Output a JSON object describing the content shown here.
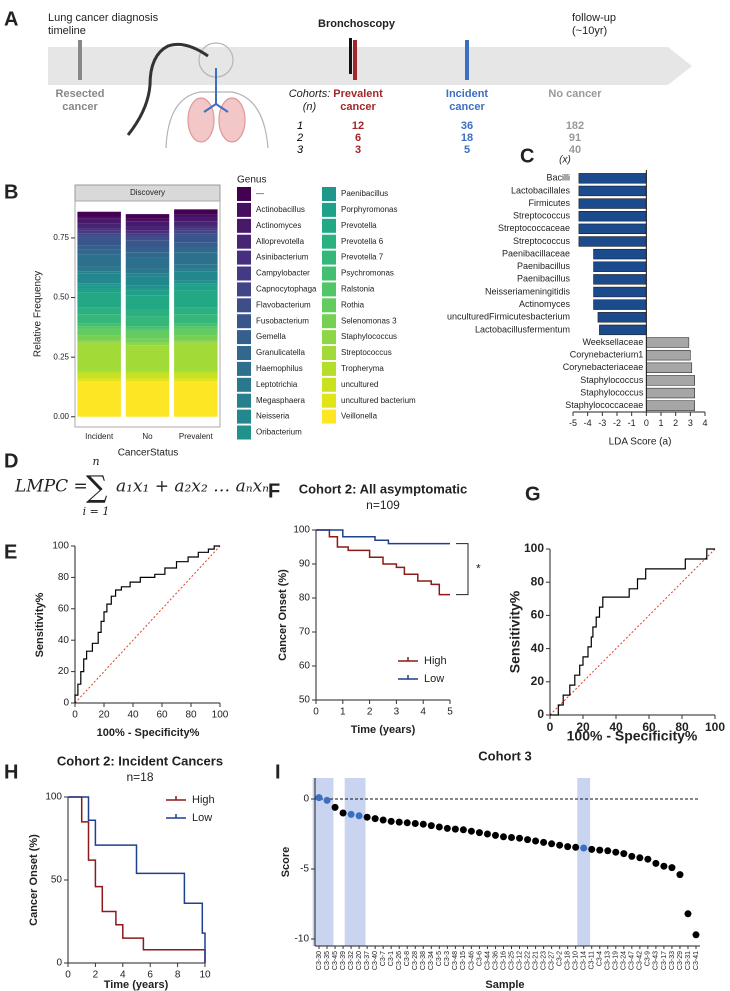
{
  "panels": [
    "A",
    "B",
    "C",
    "D",
    "E",
    "F",
    "G",
    "H",
    "I"
  ],
  "timeline": {
    "title": "Lung cancer diagnosis timeline",
    "event": "Bronchoscopy",
    "followup": "follow-up (~10yr)",
    "resected": "Resected cancer",
    "cohorts_header": "Cohorts: (n)",
    "groups": [
      "Prevalent cancer",
      "Incident cancer",
      "No cancer"
    ],
    "rows": [
      {
        "cohort": 1,
        "counts": [
          12,
          36,
          182
        ]
      },
      {
        "cohort": 2,
        "counts": [
          6,
          18,
          91
        ]
      },
      {
        "cohort": 3,
        "counts": [
          3,
          5,
          40
        ]
      }
    ]
  },
  "equation": {
    "lhs": "LMPC =",
    "symbol": "∑",
    "upper": "n",
    "lower": "i = 1",
    "rhs": "a₁x₁ + a₂x₂ … aₙxₙ"
  },
  "chart_data": [
    {
      "type": "stacked_bar",
      "strip": "Discovery",
      "ylabel": "Relative Frequency",
      "xlabel": "CancerStatus",
      "legend_title": "Genus",
      "categories": [
        "Incident",
        "No",
        "Prevalent"
      ],
      "ylim": [
        -0.043,
        0.905
      ],
      "yticks": [
        {
          "value": 0,
          "label": "0.00"
        },
        0.25,
        {
          "value": 0.5,
          "label": "0.50"
        },
        0.75
      ],
      "series": [
        {
          "name": "—",
          "color": "#440154",
          "values": [
            0.02,
            0.02,
            0.02
          ]
        },
        {
          "name": "Actinobacillus",
          "color": "#470D60",
          "values": [
            0.01,
            0.01,
            0.01
          ]
        },
        {
          "name": "Actinomyces",
          "color": "#48196B",
          "values": [
            0.02,
            0.02,
            0.02
          ]
        },
        {
          "name": "Alloprevotella",
          "color": "#482475",
          "values": [
            0.02,
            0.02,
            0.02
          ]
        },
        {
          "name": "Asinibacterium",
          "color": "#472F7D",
          "values": [
            0.01,
            0.01,
            0.01
          ]
        },
        {
          "name": "Campylobacter",
          "color": "#443A83",
          "values": [
            0.01,
            0.01,
            0.01
          ]
        },
        {
          "name": "Capnocytophaga",
          "color": "#414487",
          "values": [
            0.01,
            0.01,
            0.01
          ]
        },
        {
          "name": "Flavobacterium",
          "color": "#3D4E8A",
          "values": [
            0.01,
            0.01,
            0.01
          ]
        },
        {
          "name": "Fusobacterium",
          "color": "#39568C",
          "values": [
            0.03,
            0.03,
            0.03
          ]
        },
        {
          "name": "Gemella",
          "color": "#355F8D",
          "values": [
            0.02,
            0.02,
            0.02
          ]
        },
        {
          "name": "Granulicatella",
          "color": "#31688E",
          "values": [
            0.02,
            0.02,
            0.02
          ]
        },
        {
          "name": "Haemophilus",
          "color": "#2D708E",
          "values": [
            0.05,
            0.05,
            0.05
          ]
        },
        {
          "name": "Leptotrichia",
          "color": "#2A788E",
          "values": [
            0.02,
            0.02,
            0.02
          ]
        },
        {
          "name": "Megasphaera",
          "color": "#27808E",
          "values": [
            0.01,
            0.01,
            0.01
          ]
        },
        {
          "name": "Neisseria",
          "color": "#23888E",
          "values": [
            0.04,
            0.04,
            0.04
          ]
        },
        {
          "name": "Oribacterium",
          "color": "#21918C",
          "values": [
            0.01,
            0.01,
            0.01
          ]
        },
        {
          "name": "Paenibacillus",
          "color": "#1F988B",
          "values": [
            0.01,
            0.01,
            0.01
          ]
        },
        {
          "name": "Porphyromonas",
          "color": "#1FA088",
          "values": [
            0.02,
            0.02,
            0.02
          ]
        },
        {
          "name": "Prevotella",
          "color": "#22A884",
          "values": [
            0.06,
            0.06,
            0.07
          ]
        },
        {
          "name": "Prevotella 6",
          "color": "#2BB07F",
          "values": [
            0.03,
            0.03,
            0.03
          ]
        },
        {
          "name": "Prevotella 7",
          "color": "#35B779",
          "values": [
            0.04,
            0.04,
            0.04
          ]
        },
        {
          "name": "Psychromonas",
          "color": "#43BF71",
          "values": [
            0.01,
            0.01,
            0.01
          ]
        },
        {
          "name": "Ralstonia",
          "color": "#52C569",
          "values": [
            0.01,
            0.01,
            0.01
          ]
        },
        {
          "name": "Rothia",
          "color": "#63CB5F",
          "values": [
            0.03,
            0.03,
            0.03
          ]
        },
        {
          "name": "Selenomonas 3",
          "color": "#75D054",
          "values": [
            0.02,
            0.02,
            0.02
          ]
        },
        {
          "name": "Staphylococcus",
          "color": "#8ED645",
          "values": [
            0.01,
            0.01,
            0.01
          ]
        },
        {
          "name": "Streptococcus",
          "color": "#A2DA37",
          "values": [
            0.12,
            0.11,
            0.12
          ]
        },
        {
          "name": "Tropheryma",
          "color": "#B5DE2B",
          "values": [
            0.01,
            0.01,
            0.01
          ]
        },
        {
          "name": "uncultured",
          "color": "#CAE11F",
          "values": [
            0.02,
            0.02,
            0.02
          ]
        },
        {
          "name": "uncultured bacterium",
          "color": "#E1E418",
          "values": [
            0.01,
            0.01,
            0.01
          ]
        },
        {
          "name": "Veillonella",
          "color": "#FDE725",
          "values": [
            0.15,
            0.15,
            0.15
          ]
        }
      ]
    },
    {
      "type": "hbar",
      "category_label": "(x)",
      "xlabel": "LDA Score (a)",
      "categories": [
        "Bacilli",
        "Lactobacillales",
        "Firmicutes",
        "Streptococcus",
        "Streptococcaceae",
        "Streptococcus",
        "Paenibacillaceae",
        "Paenibacillus",
        "Paenibacillus",
        "Neisseriameningitidis",
        "Actinomyces",
        "unculturedFirmicutesbacterium",
        "Lactobacillusfermentum",
        "Weeksellaceae",
        "Corynebacterium1",
        "Corynebacteriaceae",
        "Staphylococcus",
        "Staphylococcus",
        "Staphylococcaceae"
      ],
      "values": [
        -4.6,
        -4.6,
        -4.6,
        -4.6,
        -4.6,
        -4.6,
        -3.6,
        -3.6,
        -3.6,
        -3.6,
        -3.6,
        -3.3,
        -3.2,
        2.9,
        3.0,
        3.1,
        3.3,
        3.3,
        3.3
      ],
      "negative_color": "#1b4b8c",
      "positive_color": "#a6a6a6",
      "xlim": [
        -5,
        4
      ],
      "xticks": [
        -5,
        -4,
        -3,
        -2,
        -1,
        0,
        1,
        2,
        3,
        4
      ]
    },
    {
      "type": "roc",
      "xlabel": "100% - Specificity%",
      "ylabel": "Sensitivity%",
      "color": "#000000",
      "reference_color": "#e0402a",
      "x": [
        0,
        0,
        2,
        2,
        4,
        4,
        6,
        6,
        8,
        8,
        12,
        12,
        16,
        16,
        18,
        18,
        20,
        20,
        22,
        22,
        25,
        25,
        28,
        28,
        32,
        32,
        38,
        38,
        45,
        45,
        55,
        55,
        62,
        62,
        70,
        70,
        78,
        78,
        85,
        85,
        92,
        92,
        96,
        96,
        100
      ],
      "y": [
        0,
        5,
        5,
        12,
        12,
        20,
        20,
        28,
        28,
        33,
        33,
        38,
        38,
        45,
        45,
        52,
        52,
        58,
        58,
        63,
        63,
        68,
        68,
        72,
        72,
        74,
        74,
        77,
        77,
        80,
        80,
        82,
        82,
        86,
        86,
        90,
        90,
        93,
        93,
        96,
        96,
        98,
        98,
        100,
        100
      ],
      "xlim": [
        0,
        100
      ],
      "ylim": [
        0,
        100
      ],
      "xticks": [
        0,
        20,
        40,
        60,
        80,
        100
      ],
      "yticks": [
        0,
        20,
        40,
        60,
        80,
        100
      ]
    },
    {
      "type": "km",
      "title": "Cohort 2: All asymptomatic",
      "subtitle": "n=109",
      "xlabel": "Time (years)",
      "ylabel": "Cancer Onset (%)",
      "annotation": "*",
      "legend": "lower right",
      "series": [
        {
          "name": "High",
          "color": "#8b1a1a",
          "x": [
            0,
            0.5,
            0.5,
            0.8,
            0.8,
            1.2,
            1.2,
            2,
            2,
            2.5,
            2.5,
            3,
            3,
            3.3,
            3.3,
            3.8,
            3.8,
            4.3,
            4.3,
            4.6,
            4.6,
            5
          ],
          "y": [
            100,
            100,
            98,
            98,
            95,
            95,
            94,
            94,
            92,
            92,
            90,
            90,
            89,
            89,
            87,
            87,
            85,
            85,
            84,
            84,
            81,
            81
          ]
        },
        {
          "name": "Low",
          "color": "#1f3f8f",
          "x": [
            0,
            1,
            1,
            2.2,
            2.2,
            2.7,
            2.7,
            5
          ],
          "y": [
            100,
            100,
            98,
            98,
            97,
            97,
            96,
            96
          ]
        }
      ],
      "xlim": [
        0,
        5
      ],
      "ylim": [
        50,
        100
      ],
      "xticks": [
        0,
        1,
        2,
        3,
        4,
        5
      ],
      "yticks": [
        50,
        60,
        70,
        80,
        90,
        100
      ]
    },
    {
      "type": "roc",
      "xlabel": "100% - Specificity%",
      "ylabel": "Sensitivity%",
      "color": "#000000",
      "reference_color": "#e0402a",
      "x": [
        0,
        5,
        5,
        8,
        8,
        12,
        12,
        15,
        15,
        18,
        18,
        20,
        20,
        23,
        23,
        25,
        25,
        26,
        26,
        28,
        28,
        30,
        30,
        32,
        32,
        48,
        48,
        53,
        53,
        58,
        58,
        82,
        82,
        95,
        95,
        100
      ],
      "y": [
        0,
        0,
        6,
        6,
        12,
        12,
        18,
        18,
        24,
        24,
        30,
        30,
        35,
        35,
        41,
        41,
        47,
        47,
        53,
        53,
        59,
        59,
        65,
        65,
        71,
        71,
        76,
        76,
        82,
        82,
        88,
        88,
        94,
        94,
        100,
        100
      ],
      "xlim": [
        0,
        100
      ],
      "ylim": [
        0,
        100
      ],
      "xticks": [
        0,
        20,
        40,
        60,
        80,
        100
      ],
      "yticks": [
        0,
        20,
        40,
        60,
        80,
        100
      ]
    },
    {
      "type": "km",
      "title": "Cohort 2: Incident Cancers",
      "subtitle": "n=18",
      "xlabel": "Time (years)",
      "ylabel": "Cancer Onset (%)",
      "legend": "upper right",
      "series": [
        {
          "name": "High",
          "color": "#8b1a1a",
          "x": [
            0,
            1,
            1,
            1.5,
            1.5,
            2,
            2,
            2.5,
            2.5,
            3.5,
            3.5,
            4,
            4,
            5.5,
            5.5,
            10,
            10
          ],
          "y": [
            100,
            100,
            85,
            85,
            62,
            62,
            46,
            46,
            31,
            31,
            23,
            23,
            15,
            15,
            8,
            8,
            0
          ]
        },
        {
          "name": "Low",
          "color": "#1f3f8f",
          "x": [
            0,
            1.5,
            1.5,
            2,
            2,
            5,
            5,
            8.5,
            8.5,
            9.8,
            9.8,
            10,
            10
          ],
          "y": [
            100,
            100,
            86,
            86,
            71,
            71,
            54,
            54,
            36,
            36,
            18,
            18,
            0
          ]
        }
      ],
      "xlim": [
        0,
        10
      ],
      "ylim": [
        0,
        100
      ],
      "xticks": [
        0,
        2,
        4,
        6,
        8,
        10
      ],
      "yticks": [
        0,
        50,
        100
      ]
    },
    {
      "type": "scatter",
      "title": "Cohort 3",
      "xlabel": "Sample",
      "ylabel": "Score",
      "color": "#000000",
      "highlight_color": "#3a6fc4",
      "band_color": "#c8d4f0",
      "highlighted": [
        0,
        1,
        4,
        5,
        33
      ],
      "reference": 0,
      "categories": [
        "C3-30",
        "C3-35",
        "C3-45",
        "C3-39",
        "C3-32",
        "C3-20",
        "C3-37",
        "C3-40",
        "C3-7",
        "C3-1",
        "C3-26",
        "C3-8",
        "C3-28",
        "C3-38",
        "C3-34",
        "C3-5",
        "C3-3",
        "C3-48",
        "C3-15",
        "C3-46",
        "C3-6",
        "C3-44",
        "C3-36",
        "C3-16",
        "C3-25",
        "C3-12",
        "C3-22",
        "C3-21",
        "C3-23",
        "C3-27",
        "C3-2",
        "C3-18",
        "C3-10",
        "C3-14",
        "C3-11",
        "C3-4",
        "C3-13",
        "C3-19",
        "C3-24",
        "C3-47",
        "C3-42",
        "C3-9",
        "C3-43",
        "C3-17",
        "C3-33",
        "C3-29",
        "C3-31",
        "C3-41"
      ],
      "values": [
        0.1,
        -0.1,
        -0.6,
        -1.0,
        -1.1,
        -1.2,
        -1.3,
        -1.4,
        -1.5,
        -1.6,
        -1.65,
        -1.7,
        -1.75,
        -1.8,
        -1.9,
        -2.0,
        -2.1,
        -2.15,
        -2.2,
        -2.3,
        -2.4,
        -2.5,
        -2.6,
        -2.7,
        -2.75,
        -2.8,
        -2.9,
        -3.0,
        -3.1,
        -3.2,
        -3.3,
        -3.4,
        -3.45,
        -3.5,
        -3.6,
        -3.65,
        -3.7,
        -3.8,
        -3.9,
        -4.1,
        -4.2,
        -4.3,
        -4.6,
        -4.8,
        -4.9,
        -5.4,
        -8.2,
        -9.7
      ],
      "ylim": [
        -10.5,
        1.5
      ],
      "yticks": [
        0,
        -5,
        -10
      ]
    }
  ]
}
